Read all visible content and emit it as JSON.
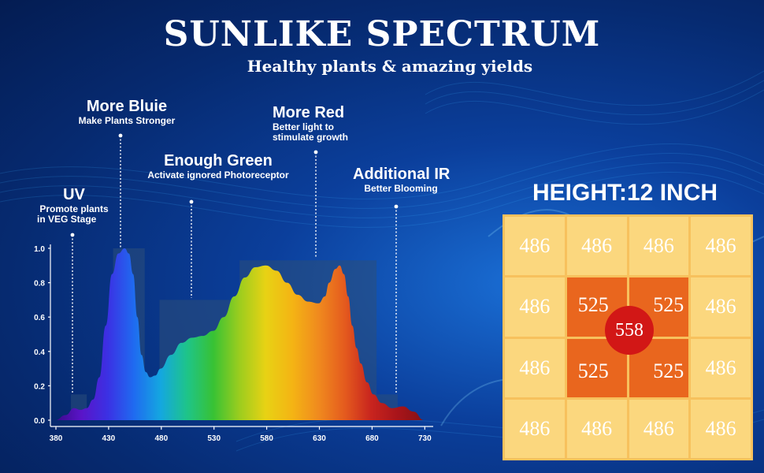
{
  "header": {
    "title": "SUNLIKE SPECTRUM",
    "subtitle": "Healthy plants & amazing yields"
  },
  "annotations": {
    "uv": {
      "title": "UV",
      "lines": [
        "Promote plants",
        "in VEG Stage"
      ]
    },
    "blue": {
      "title": "More Bluie",
      "lines": [
        "Make Plants Stronger"
      ]
    },
    "green": {
      "title": "Enough Green",
      "lines": [
        "Activate ignored Photoreceptor"
      ]
    },
    "red": {
      "title": "More Red",
      "lines": [
        "Better light to",
        "stimulate growth"
      ]
    },
    "ir": {
      "title": "Additional IR",
      "lines": [
        "Better Blooming"
      ]
    }
  },
  "chart_data": [
    {
      "type": "area",
      "xlabel": "",
      "ylabel": "",
      "x_ticks": [
        380,
        430,
        480,
        530,
        580,
        630,
        680,
        730
      ],
      "y_ticks": [
        "0.0",
        "0.2",
        "0.4",
        "0.6",
        "0.8",
        "1.0"
      ],
      "xlim": [
        380,
        735
      ],
      "ylim": [
        0,
        1.0
      ],
      "series": [
        {
          "x": [
            380,
            390,
            398,
            404,
            410,
            416,
            422,
            428,
            434,
            440,
            446,
            450,
            454,
            458,
            462,
            466,
            470,
            475,
            480,
            490,
            500,
            510,
            520,
            530,
            540,
            550,
            560,
            570,
            580,
            590,
            600,
            610,
            620,
            630,
            636,
            640,
            646,
            650,
            654,
            658,
            662,
            666,
            670,
            676,
            682,
            690,
            700,
            710,
            720,
            730
          ],
          "y": [
            0.0,
            0.03,
            0.07,
            0.06,
            0.07,
            0.12,
            0.25,
            0.55,
            0.85,
            0.97,
            1.0,
            0.97,
            0.85,
            0.6,
            0.38,
            0.28,
            0.25,
            0.26,
            0.3,
            0.38,
            0.45,
            0.48,
            0.49,
            0.52,
            0.6,
            0.72,
            0.83,
            0.89,
            0.9,
            0.87,
            0.8,
            0.73,
            0.69,
            0.68,
            0.72,
            0.8,
            0.88,
            0.9,
            0.85,
            0.72,
            0.55,
            0.42,
            0.33,
            0.22,
            0.15,
            0.1,
            0.07,
            0.08,
            0.05,
            0.0
          ]
        }
      ],
      "colors": [
        "#3a0a8a",
        "#5a14c8",
        "#3b31e4",
        "#1f6bf0",
        "#14a7e0",
        "#1ec48a",
        "#38c234",
        "#9ccd1e",
        "#e8d214",
        "#f4b414",
        "#f08a1e",
        "#e45a1e",
        "#c8241e",
        "#a8141a",
        "#861214"
      ]
    },
    {
      "type": "heatmap",
      "title": "HEIGHT:12 INCH",
      "rows": [
        [
          486,
          486,
          486,
          486
        ],
        [
          486,
          525,
          525,
          486
        ],
        [
          486,
          525,
          525,
          486
        ],
        [
          486,
          486,
          486,
          486
        ]
      ],
      "center_value": 558,
      "colors": {
        "outer": "#fbd77e",
        "inner": "#e9661e",
        "center": "#d21716"
      }
    }
  ]
}
